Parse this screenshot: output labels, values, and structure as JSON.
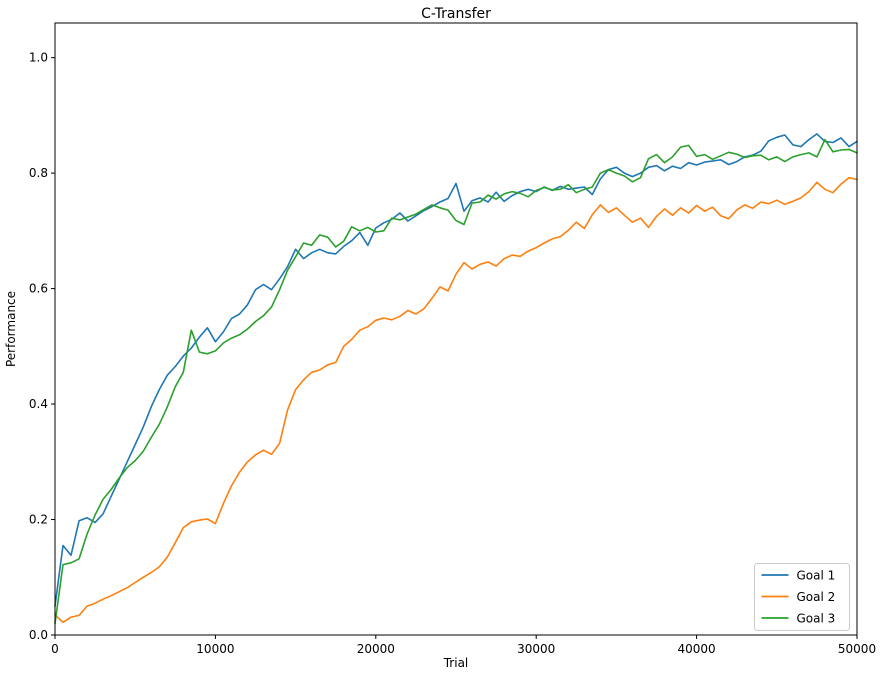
{
  "chart_data": {
    "type": "line",
    "title": "C-Transfer",
    "xlabel": "Trial",
    "ylabel": "Performance",
    "xlim": [
      0,
      50000
    ],
    "ylim": [
      0,
      1.06
    ],
    "xticks": [
      0,
      10000,
      20000,
      30000,
      40000,
      50000
    ],
    "xtick_labels": [
      "0",
      "10000",
      "20000",
      "30000",
      "40000",
      "50000"
    ],
    "yticks": [
      0.0,
      0.2,
      0.4,
      0.6,
      0.8,
      1.0
    ],
    "ytick_labels": [
      "0.0",
      "0.2",
      "0.4",
      "0.6",
      "0.8",
      "1.0"
    ],
    "grid": false,
    "x_start": 0,
    "x_step": 500,
    "legend": {
      "position": "lower right",
      "background": "#ffffff",
      "border_color": "#cccccc"
    },
    "axis_color": "#000000",
    "background": "#ffffff",
    "series": [
      {
        "name": "Goal 1",
        "color": "#1f77b4",
        "values": [
          0.05,
          0.155,
          0.138,
          0.198,
          0.203,
          0.195,
          0.21,
          0.24,
          0.27,
          0.3,
          0.33,
          0.36,
          0.395,
          0.425,
          0.45,
          0.465,
          0.483,
          0.497,
          0.516,
          0.532,
          0.508,
          0.525,
          0.548,
          0.556,
          0.572,
          0.598,
          0.607,
          0.598,
          0.617,
          0.638,
          0.668,
          0.652,
          0.662,
          0.668,
          0.662,
          0.66,
          0.673,
          0.683,
          0.697,
          0.675,
          0.705,
          0.714,
          0.72,
          0.731,
          0.717,
          0.726,
          0.735,
          0.742,
          0.75,
          0.756,
          0.782,
          0.734,
          0.752,
          0.757,
          0.75,
          0.767,
          0.751,
          0.761,
          0.768,
          0.772,
          0.768,
          0.776,
          0.77,
          0.777,
          0.772,
          0.774,
          0.776,
          0.763,
          0.79,
          0.806,
          0.81,
          0.8,
          0.794,
          0.8,
          0.81,
          0.813,
          0.804,
          0.812,
          0.808,
          0.818,
          0.814,
          0.819,
          0.821,
          0.823,
          0.815,
          0.82,
          0.828,
          0.831,
          0.838,
          0.856,
          0.862,
          0.866,
          0.849,
          0.846,
          0.858,
          0.868,
          0.855,
          0.853,
          0.861,
          0.846,
          0.855
        ]
      },
      {
        "name": "Goal 2",
        "color": "#ff7f0e",
        "values": [
          0.035,
          0.022,
          0.031,
          0.034,
          0.05,
          0.055,
          0.062,
          0.068,
          0.075,
          0.082,
          0.091,
          0.1,
          0.108,
          0.118,
          0.135,
          0.16,
          0.186,
          0.196,
          0.199,
          0.201,
          0.193,
          0.228,
          0.258,
          0.282,
          0.3,
          0.312,
          0.32,
          0.313,
          0.332,
          0.39,
          0.425,
          0.442,
          0.455,
          0.459,
          0.468,
          0.472,
          0.5,
          0.512,
          0.528,
          0.534,
          0.545,
          0.549,
          0.546,
          0.552,
          0.562,
          0.556,
          0.565,
          0.583,
          0.603,
          0.596,
          0.625,
          0.645,
          0.634,
          0.642,
          0.646,
          0.639,
          0.652,
          0.658,
          0.656,
          0.665,
          0.671,
          0.679,
          0.686,
          0.69,
          0.701,
          0.715,
          0.704,
          0.728,
          0.745,
          0.732,
          0.74,
          0.727,
          0.715,
          0.722,
          0.706,
          0.725,
          0.738,
          0.727,
          0.74,
          0.731,
          0.744,
          0.734,
          0.741,
          0.726,
          0.721,
          0.736,
          0.745,
          0.739,
          0.75,
          0.747,
          0.753,
          0.746,
          0.751,
          0.757,
          0.768,
          0.784,
          0.772,
          0.766,
          0.781,
          0.792,
          0.789
        ]
      },
      {
        "name": "Goal 3",
        "color": "#2ca02c",
        "values": [
          0.02,
          0.122,
          0.125,
          0.132,
          0.175,
          0.208,
          0.235,
          0.252,
          0.272,
          0.29,
          0.302,
          0.318,
          0.342,
          0.365,
          0.395,
          0.43,
          0.455,
          0.528,
          0.49,
          0.487,
          0.492,
          0.506,
          0.514,
          0.52,
          0.53,
          0.543,
          0.553,
          0.568,
          0.598,
          0.632,
          0.655,
          0.679,
          0.675,
          0.693,
          0.689,
          0.672,
          0.682,
          0.707,
          0.7,
          0.706,
          0.698,
          0.7,
          0.722,
          0.719,
          0.724,
          0.729,
          0.737,
          0.745,
          0.74,
          0.736,
          0.718,
          0.711,
          0.748,
          0.75,
          0.762,
          0.755,
          0.764,
          0.768,
          0.765,
          0.759,
          0.77,
          0.775,
          0.771,
          0.772,
          0.78,
          0.766,
          0.772,
          0.776,
          0.8,
          0.806,
          0.8,
          0.795,
          0.785,
          0.792,
          0.825,
          0.832,
          0.818,
          0.828,
          0.845,
          0.848,
          0.829,
          0.832,
          0.824,
          0.83,
          0.836,
          0.833,
          0.827,
          0.83,
          0.831,
          0.823,
          0.828,
          0.82,
          0.828,
          0.832,
          0.835,
          0.828,
          0.858,
          0.837,
          0.84,
          0.841,
          0.835
        ]
      }
    ]
  }
}
